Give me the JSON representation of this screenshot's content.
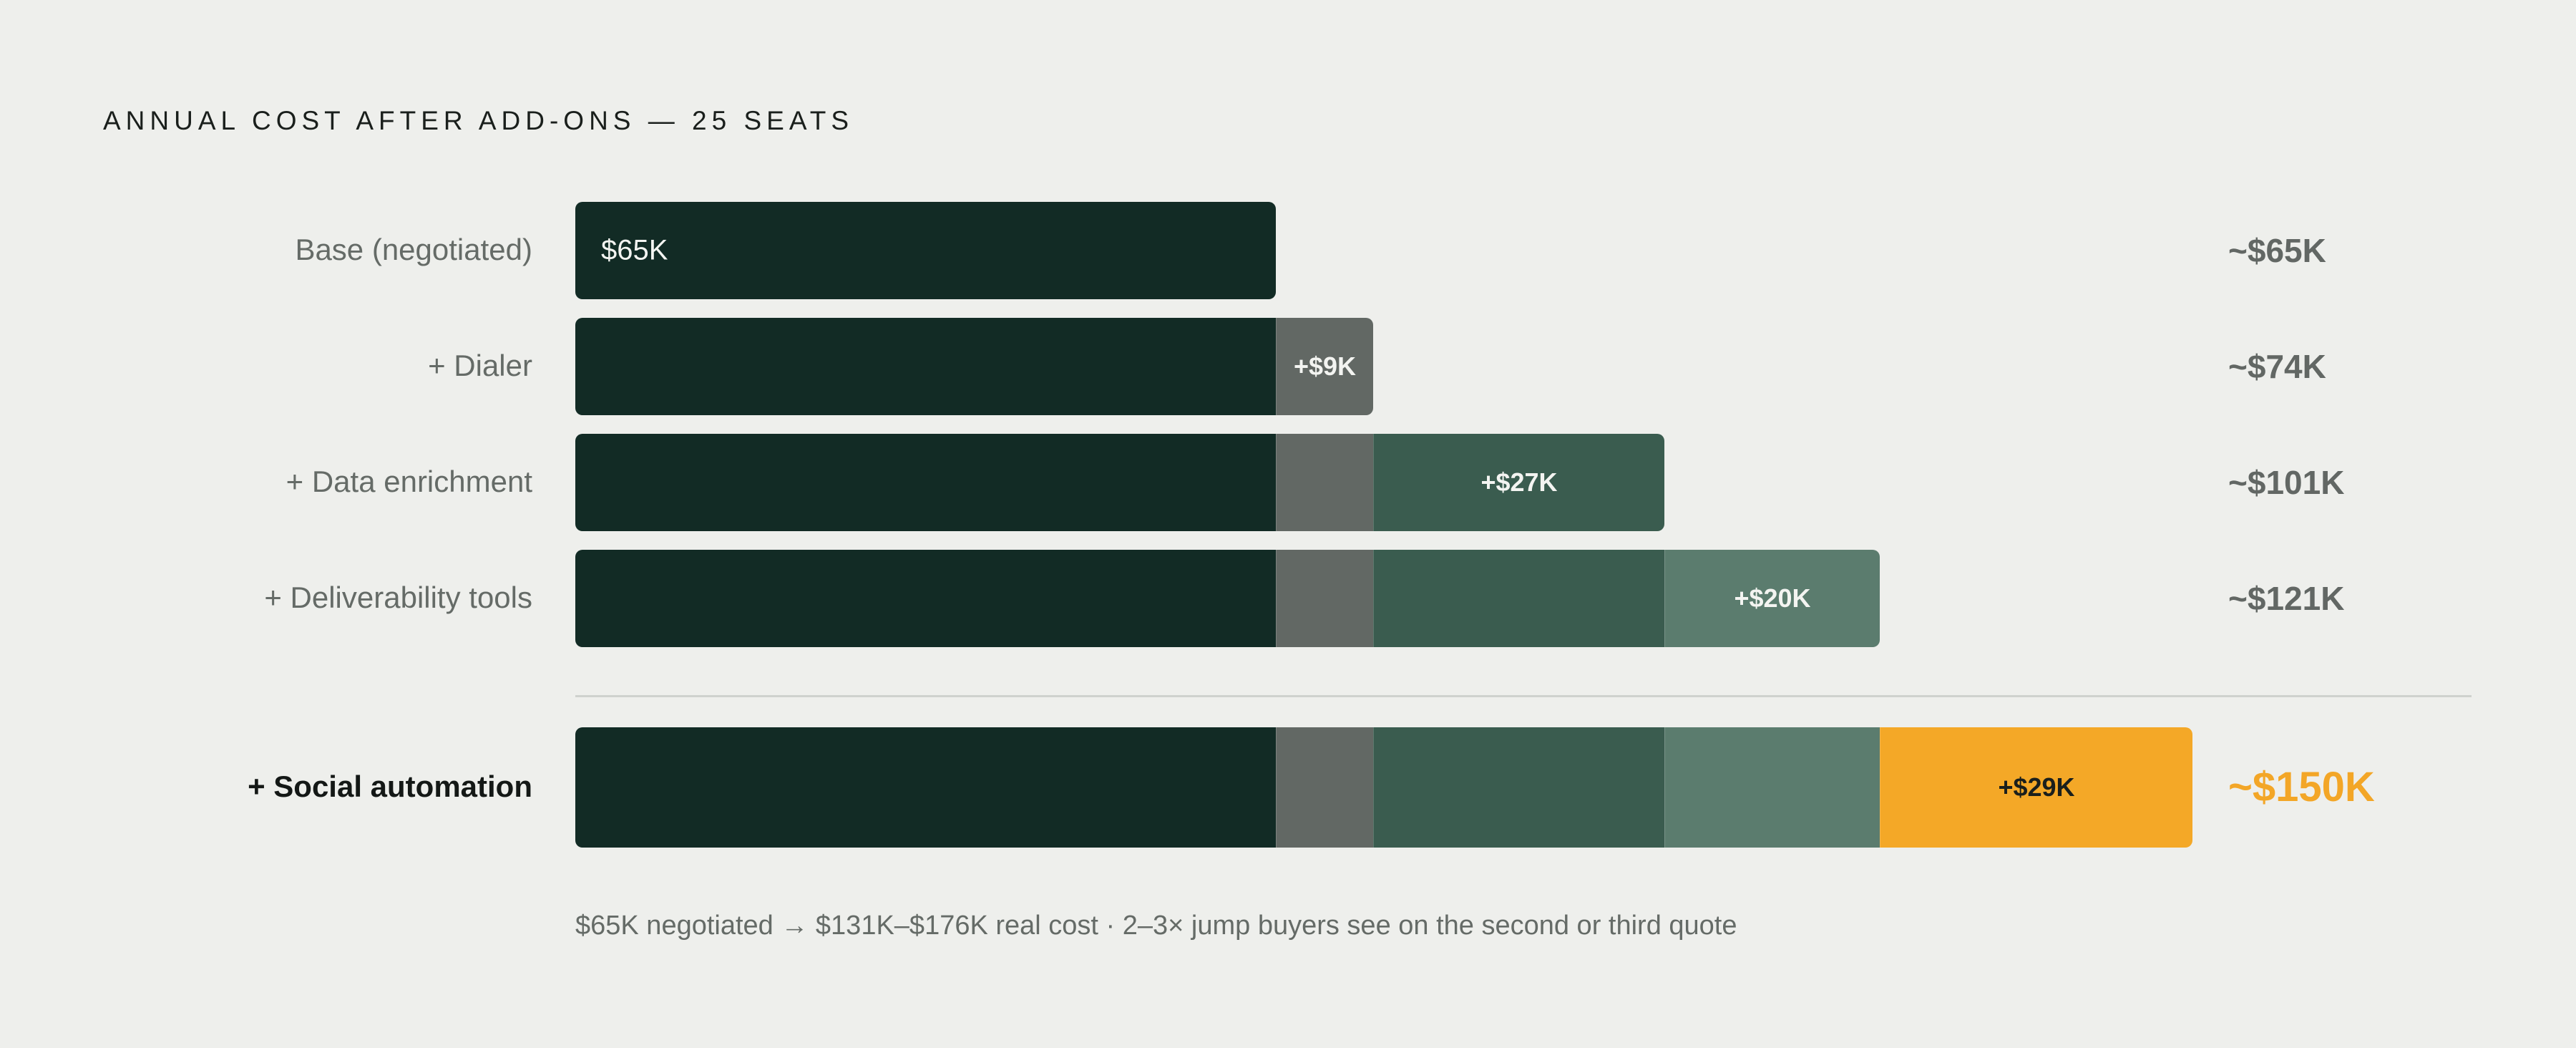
{
  "chart_data": {
    "type": "bar",
    "title": "ANNUAL COST AFTER ADD-ONS — 25 SEATS",
    "orientation": "horizontal-stacked-cumulative",
    "unit": "$K",
    "categories": [
      "Base (negotiated)",
      "+ Dialer",
      "+ Data enrichment",
      "+ Deliverability tools",
      "+ Social automation"
    ],
    "segments": [
      {
        "key": "base",
        "value": 65,
        "label": "$65K",
        "color": "#122b25"
      },
      {
        "key": "dialer",
        "value": 9,
        "label": "+$9K",
        "color": "#626864"
      },
      {
        "key": "data",
        "value": 27,
        "label": "+$27K",
        "color": "#3a5c4f"
      },
      {
        "key": "deliverability",
        "value": 20,
        "label": "+$20K",
        "color": "#5b7c6e"
      },
      {
        "key": "social",
        "value": 29,
        "label": "+$29K",
        "color": "#f4a827"
      }
    ],
    "totals": [
      "~$65K",
      "~$74K",
      "~$101K",
      "~$121K",
      "~$150K"
    ],
    "total_values": [
      65,
      74,
      101,
      121,
      150
    ],
    "highlight_index": 4,
    "highlight_color": "#f3a627",
    "xlim": [
      0,
      150
    ],
    "grid": false
  },
  "footnote": "$65K negotiated → $131K–$176K real cost  ·  2–3× jump buyers see on the second or third quote"
}
